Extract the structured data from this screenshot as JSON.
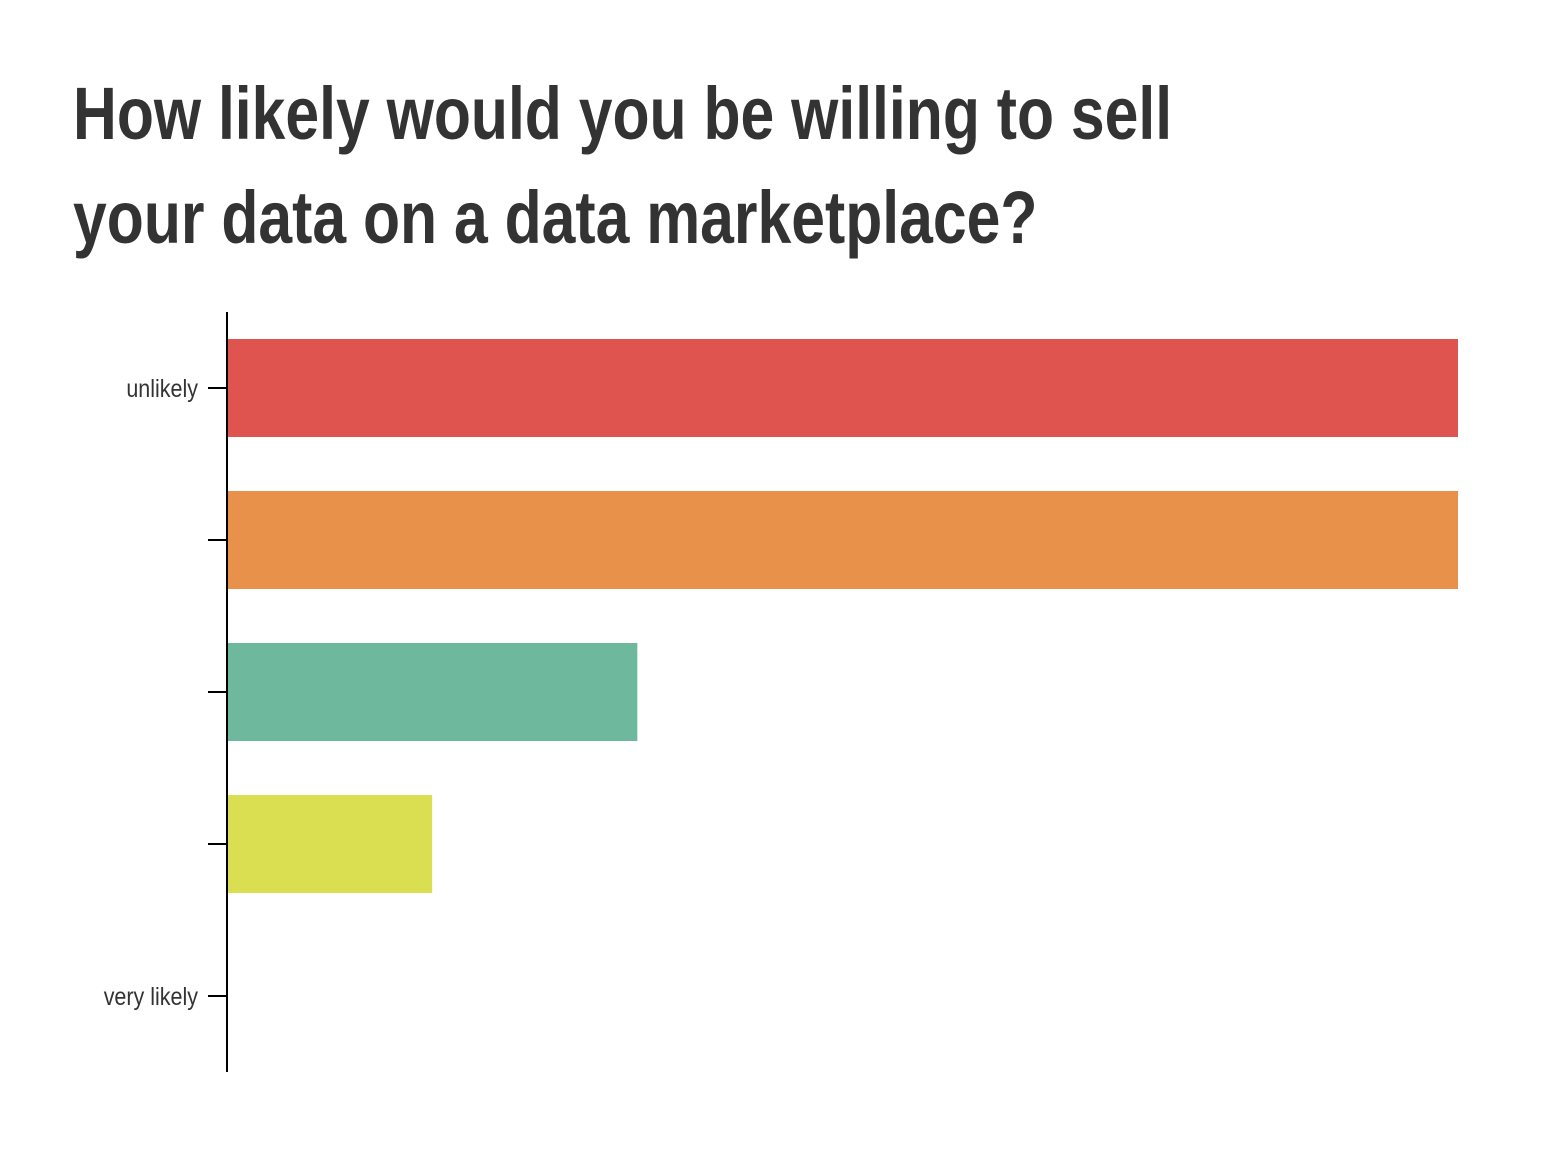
{
  "title": "How likely would you be willing to sell your data on a data marketplace?",
  "chart_data": {
    "type": "bar",
    "orientation": "horizontal",
    "title": "How likely would you be willing to sell your data on a data marketplace?",
    "xlabel": "",
    "ylabel": "",
    "categories": [
      "unlikely",
      "",
      "",
      "",
      "very likely"
    ],
    "tick_labels": [
      "unlikely",
      "",
      "",
      "",
      "very likely"
    ],
    "values": [
      6,
      6,
      2,
      1,
      0
    ],
    "xlim": [
      0,
      6
    ],
    "colors": [
      "#df544e",
      "#e8914a",
      "#6eb99d",
      "#d9df50",
      "#cccccc"
    ],
    "grid": false,
    "legend": "none"
  }
}
